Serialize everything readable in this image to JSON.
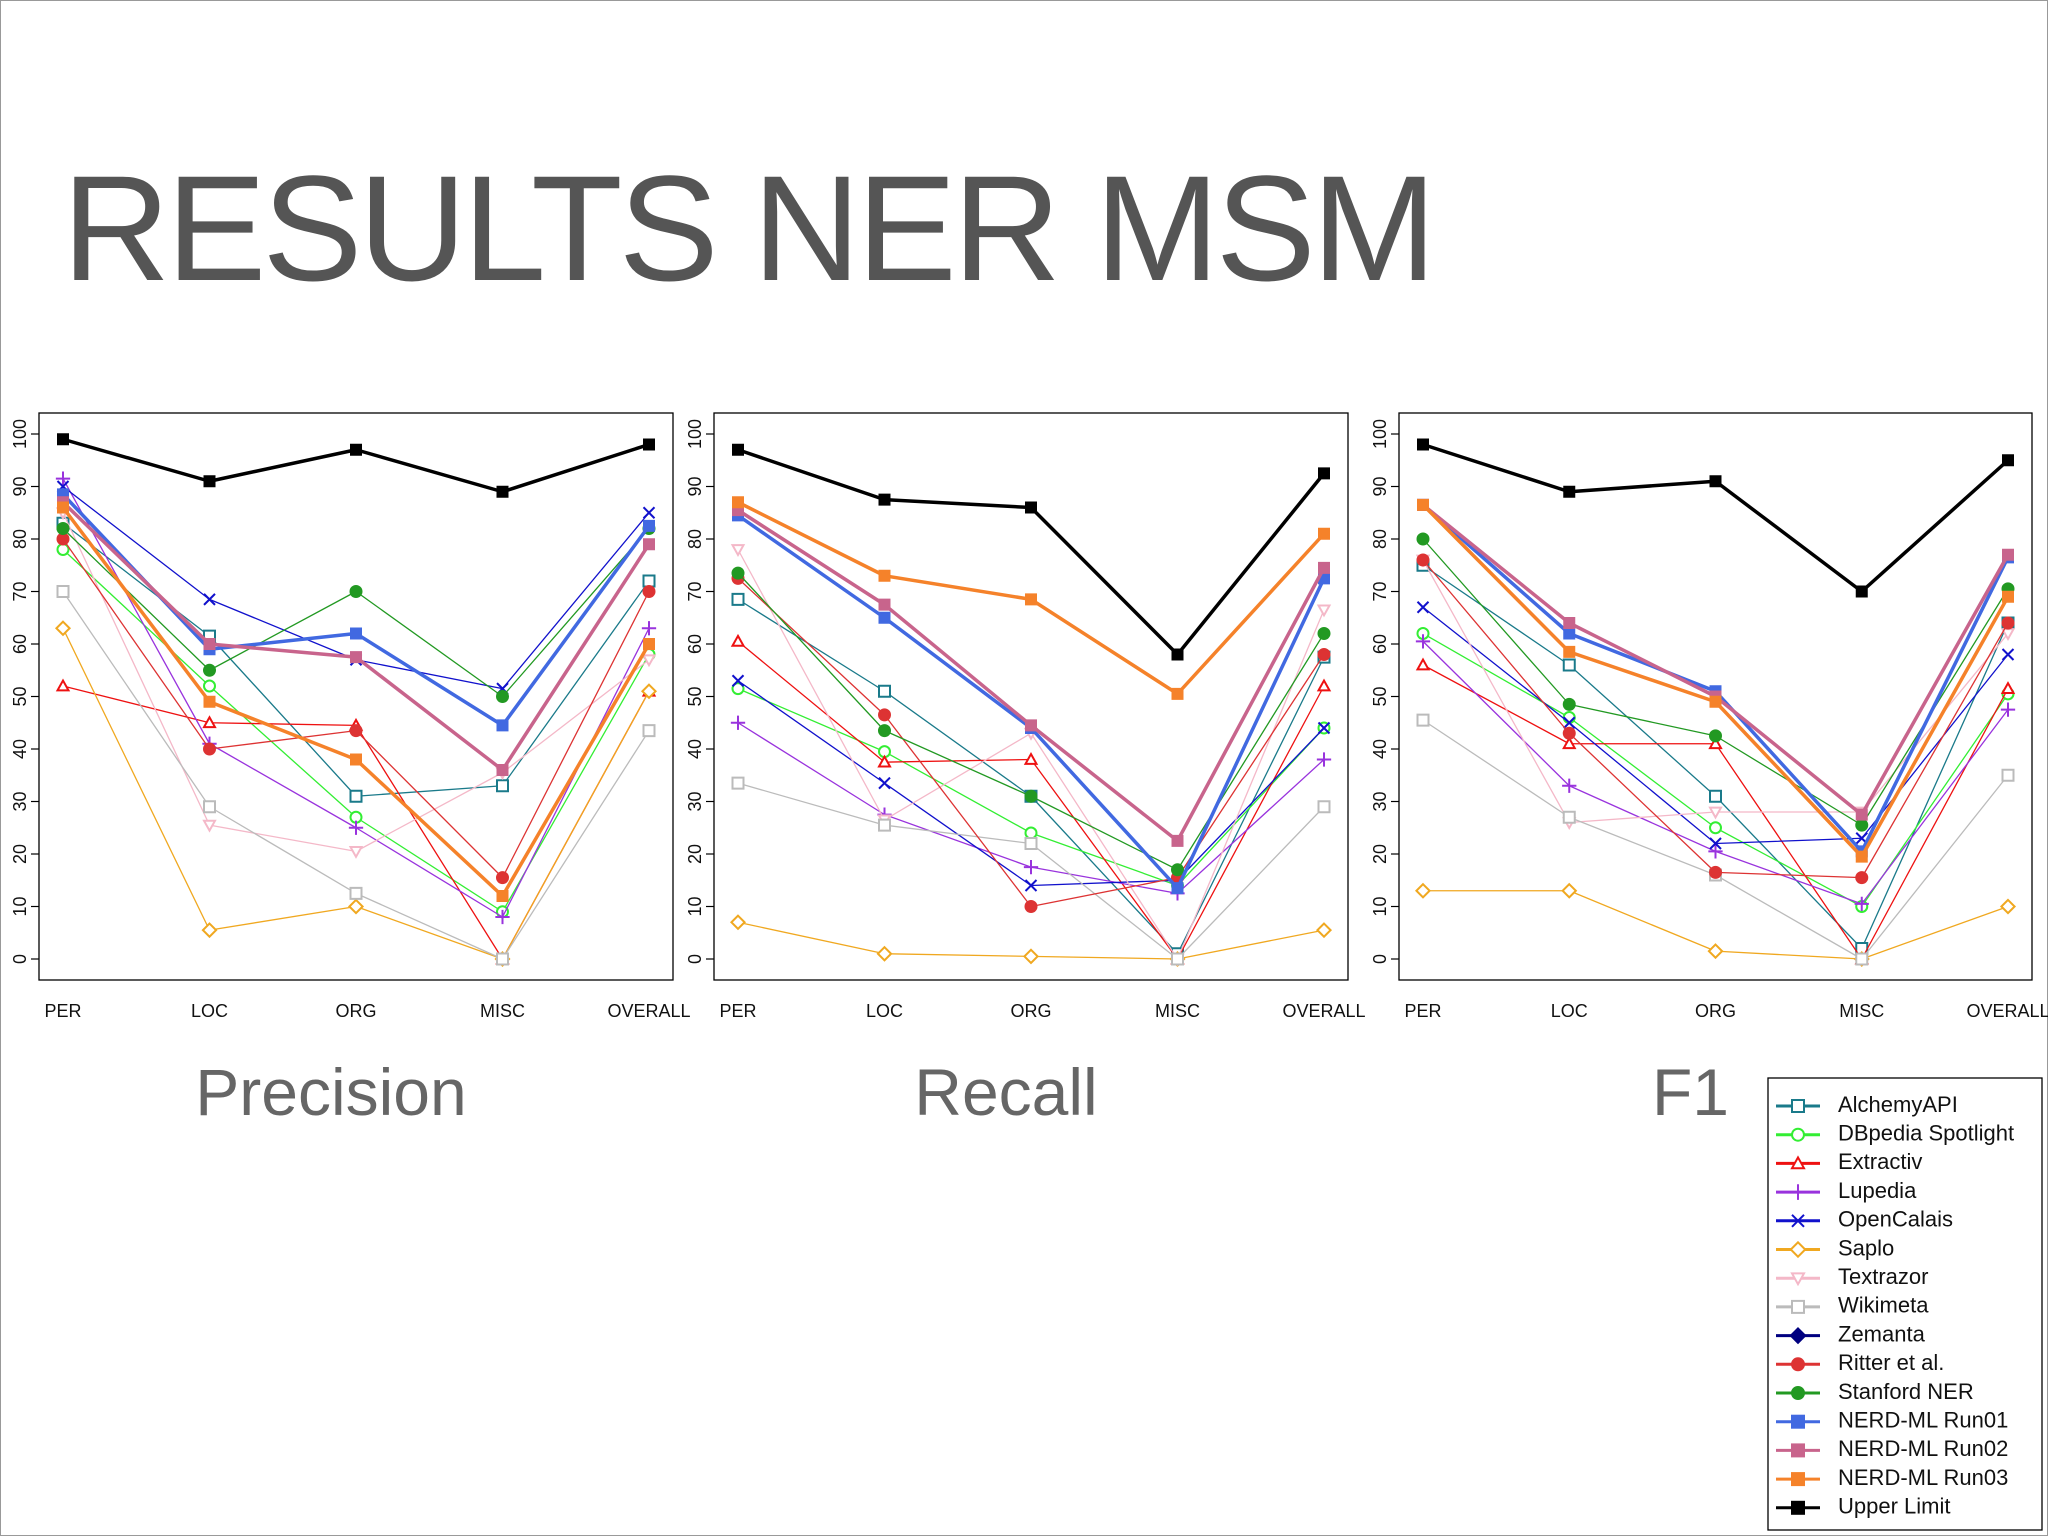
{
  "title": "RESULTS NER MSM",
  "legend_position": "bottom-right",
  "chart_data": [
    {
      "type": "line",
      "title": "Precision",
      "categories": [
        "PER",
        "LOC",
        "ORG",
        "MISC",
        "OVERALL"
      ],
      "ylim": [
        -4,
        104
      ],
      "yticks": [
        0,
        10,
        20,
        30,
        40,
        50,
        60,
        70,
        80,
        90,
        100
      ],
      "series": [
        {
          "name": "AlchemyAPI",
          "color": "#1a7a8a",
          "marker": "square-open",
          "linewidth": 1.3,
          "values": [
            83,
            61.5,
            31,
            33,
            72
          ]
        },
        {
          "name": "DBpedia Spotlight",
          "color": "#33ee33",
          "marker": "circle-open",
          "linewidth": 1.3,
          "values": [
            78,
            52,
            27,
            9,
            58
          ]
        },
        {
          "name": "Extractiv",
          "color": "#ee1111",
          "marker": "triangle-open",
          "linewidth": 1.3,
          "values": [
            52,
            45,
            44.5,
            0,
            51
          ]
        },
        {
          "name": "Lupedia",
          "color": "#9933dd",
          "marker": "plus",
          "linewidth": 1.3,
          "values": [
            91.5,
            41,
            25,
            8,
            63
          ]
        },
        {
          "name": "OpenCalais",
          "color": "#1111cc",
          "marker": "cross",
          "linewidth": 1.3,
          "values": [
            90,
            68.5,
            57,
            51.5,
            85
          ]
        },
        {
          "name": "Saplo",
          "color": "#f0a820",
          "marker": "diamond-open",
          "linewidth": 1.3,
          "values": [
            63,
            5.5,
            10,
            0,
            51
          ]
        },
        {
          "name": "Textrazor",
          "color": "#f4b8c8",
          "marker": "triangle-down-open",
          "linewidth": 1.3,
          "values": [
            85,
            25.5,
            20.5,
            35.5,
            57
          ]
        },
        {
          "name": "Wikimeta",
          "color": "#bbbbbb",
          "marker": "square-open",
          "linewidth": 1.3,
          "values": [
            70,
            29,
            12.5,
            0,
            43.5
          ]
        },
        {
          "name": "Zemanta",
          "color": "#000080",
          "marker": "diamond",
          "linewidth": 1.3,
          "values": [
            null,
            null,
            null,
            null,
            null
          ]
        },
        {
          "name": "Ritter et al.",
          "color": "#dd3333",
          "marker": "circle",
          "linewidth": 1.3,
          "values": [
            80,
            40,
            43.5,
            15.5,
            70
          ]
        },
        {
          "name": "Stanford NER",
          "color": "#229922",
          "marker": "circle",
          "linewidth": 1.3,
          "values": [
            82,
            55,
            70,
            50,
            82
          ]
        },
        {
          "name": "NERD-ML Run01",
          "color": "#4169e1",
          "marker": "square",
          "linewidth": 3.5,
          "values": [
            88.5,
            59,
            62,
            44.5,
            82.5
          ]
        },
        {
          "name": "NERD-ML Run02",
          "color": "#c8648c",
          "marker": "square",
          "linewidth": 3.5,
          "values": [
            87,
            60,
            57.5,
            36,
            79
          ]
        },
        {
          "name": "NERD-ML Run03",
          "color": "#f5822a",
          "marker": "square",
          "linewidth": 3.5,
          "values": [
            86,
            49,
            38,
            12,
            60
          ]
        },
        {
          "name": "Upper Limit",
          "color": "#000000",
          "marker": "square",
          "linewidth": 3.5,
          "values": [
            99,
            91,
            97,
            89,
            98
          ]
        }
      ]
    },
    {
      "type": "line",
      "title": "Recall",
      "categories": [
        "PER",
        "LOC",
        "ORG",
        "MISC",
        "OVERALL"
      ],
      "ylim": [
        -4,
        104
      ],
      "yticks": [
        0,
        10,
        20,
        30,
        40,
        50,
        60,
        70,
        80,
        90,
        100
      ],
      "series": [
        {
          "name": "AlchemyAPI",
          "color": "#1a7a8a",
          "marker": "square-open",
          "linewidth": 1.3,
          "values": [
            68.5,
            51,
            31,
            1,
            57.5
          ]
        },
        {
          "name": "DBpedia Spotlight",
          "color": "#33ee33",
          "marker": "circle-open",
          "linewidth": 1.3,
          "values": [
            51.5,
            39.5,
            24,
            14,
            44
          ]
        },
        {
          "name": "Extractiv",
          "color": "#ee1111",
          "marker": "triangle-open",
          "linewidth": 1.3,
          "values": [
            60.5,
            37.5,
            38,
            0,
            52
          ]
        },
        {
          "name": "Lupedia",
          "color": "#9933dd",
          "marker": "plus",
          "linewidth": 1.3,
          "values": [
            45,
            27.5,
            17.5,
            12.5,
            38
          ]
        },
        {
          "name": "OpenCalais",
          "color": "#1111cc",
          "marker": "cross",
          "linewidth": 1.3,
          "values": [
            53,
            33.5,
            14,
            15,
            44
          ]
        },
        {
          "name": "Saplo",
          "color": "#f0a820",
          "marker": "diamond-open",
          "linewidth": 1.3,
          "values": [
            7,
            1,
            0.5,
            0,
            5.5
          ]
        },
        {
          "name": "Textrazor",
          "color": "#f4b8c8",
          "marker": "triangle-down-open",
          "linewidth": 1.3,
          "values": [
            78,
            26.5,
            43,
            0,
            66.5
          ]
        },
        {
          "name": "Wikimeta",
          "color": "#bbbbbb",
          "marker": "square-open",
          "linewidth": 1.3,
          "values": [
            33.5,
            25.5,
            22,
            0,
            29
          ]
        },
        {
          "name": "Zemanta",
          "color": "#000080",
          "marker": "diamond",
          "linewidth": 1.3,
          "values": [
            null,
            null,
            null,
            null,
            null
          ]
        },
        {
          "name": "Ritter et al.",
          "color": "#dd3333",
          "marker": "circle",
          "linewidth": 1.3,
          "values": [
            72.5,
            46.5,
            10,
            15.5,
            58
          ]
        },
        {
          "name": "Stanford NER",
          "color": "#229922",
          "marker": "circle",
          "linewidth": 1.3,
          "values": [
            73.5,
            43.5,
            31,
            17,
            62
          ]
        },
        {
          "name": "NERD-ML Run01",
          "color": "#4169e1",
          "marker": "square",
          "linewidth": 3.5,
          "values": [
            84.5,
            65,
            44,
            13.5,
            72.5
          ]
        },
        {
          "name": "NERD-ML Run02",
          "color": "#c8648c",
          "marker": "square",
          "linewidth": 3.5,
          "values": [
            85.5,
            67.5,
            44.5,
            22.5,
            74.5
          ]
        },
        {
          "name": "NERD-ML Run03",
          "color": "#f5822a",
          "marker": "square",
          "linewidth": 3.5,
          "values": [
            87,
            73,
            68.5,
            50.5,
            81
          ]
        },
        {
          "name": "Upper Limit",
          "color": "#000000",
          "marker": "square",
          "linewidth": 3.5,
          "values": [
            97,
            87.5,
            86,
            58,
            92.5
          ]
        }
      ]
    },
    {
      "type": "line",
      "title": "F1",
      "categories": [
        "PER",
        "LOC",
        "ORG",
        "MISC",
        "OVERALL"
      ],
      "ylim": [
        -4,
        104
      ],
      "yticks": [
        0,
        10,
        20,
        30,
        40,
        50,
        60,
        70,
        80,
        90,
        100
      ],
      "series": [
        {
          "name": "AlchemyAPI",
          "color": "#1a7a8a",
          "marker": "square-open",
          "linewidth": 1.3,
          "values": [
            75,
            56,
            31,
            2,
            64
          ]
        },
        {
          "name": "DBpedia Spotlight",
          "color": "#33ee33",
          "marker": "circle-open",
          "linewidth": 1.3,
          "values": [
            62,
            46,
            25,
            10,
            50.5
          ]
        },
        {
          "name": "Extractiv",
          "color": "#ee1111",
          "marker": "triangle-open",
          "linewidth": 1.3,
          "values": [
            56,
            41,
            41,
            0,
            51.5
          ]
        },
        {
          "name": "Lupedia",
          "color": "#9933dd",
          "marker": "plus",
          "linewidth": 1.3,
          "values": [
            60.5,
            33,
            20.5,
            10.5,
            47.5
          ]
        },
        {
          "name": "OpenCalais",
          "color": "#1111cc",
          "marker": "cross",
          "linewidth": 1.3,
          "values": [
            67,
            45,
            22,
            23,
            58
          ]
        },
        {
          "name": "Saplo",
          "color": "#f0a820",
          "marker": "diamond-open",
          "linewidth": 1.3,
          "values": [
            13,
            13,
            1.5,
            0,
            10
          ]
        },
        {
          "name": "Textrazor",
          "color": "#f4b8c8",
          "marker": "triangle-down-open",
          "linewidth": 1.3,
          "values": [
            76,
            26,
            28,
            28,
            62
          ]
        },
        {
          "name": "Wikimeta",
          "color": "#bbbbbb",
          "marker": "square-open",
          "linewidth": 1.3,
          "values": [
            45.5,
            27,
            16,
            0,
            35
          ]
        },
        {
          "name": "Zemanta",
          "color": "#000080",
          "marker": "diamond",
          "linewidth": 1.3,
          "values": [
            null,
            null,
            null,
            null,
            null
          ]
        },
        {
          "name": "Ritter et al.",
          "color": "#dd3333",
          "marker": "circle",
          "linewidth": 1.3,
          "values": [
            76,
            43,
            16.5,
            15.5,
            64
          ]
        },
        {
          "name": "Stanford NER",
          "color": "#229922",
          "marker": "circle",
          "linewidth": 1.3,
          "values": [
            80,
            48.5,
            42.5,
            25.5,
            70.5
          ]
        },
        {
          "name": "NERD-ML Run01",
          "color": "#4169e1",
          "marker": "square",
          "linewidth": 3.5,
          "values": [
            86.5,
            62,
            51,
            20.5,
            76.5
          ]
        },
        {
          "name": "NERD-ML Run02",
          "color": "#c8648c",
          "marker": "square",
          "linewidth": 3.5,
          "values": [
            86.5,
            64,
            50,
            27.5,
            77
          ]
        },
        {
          "name": "NERD-ML Run03",
          "color": "#f5822a",
          "marker": "square",
          "linewidth": 3.5,
          "values": [
            86.5,
            58.5,
            49,
            19.5,
            69
          ]
        },
        {
          "name": "Upper Limit",
          "color": "#000000",
          "marker": "square",
          "linewidth": 3.5,
          "values": [
            98,
            89,
            91,
            70,
            95
          ]
        }
      ]
    }
  ]
}
